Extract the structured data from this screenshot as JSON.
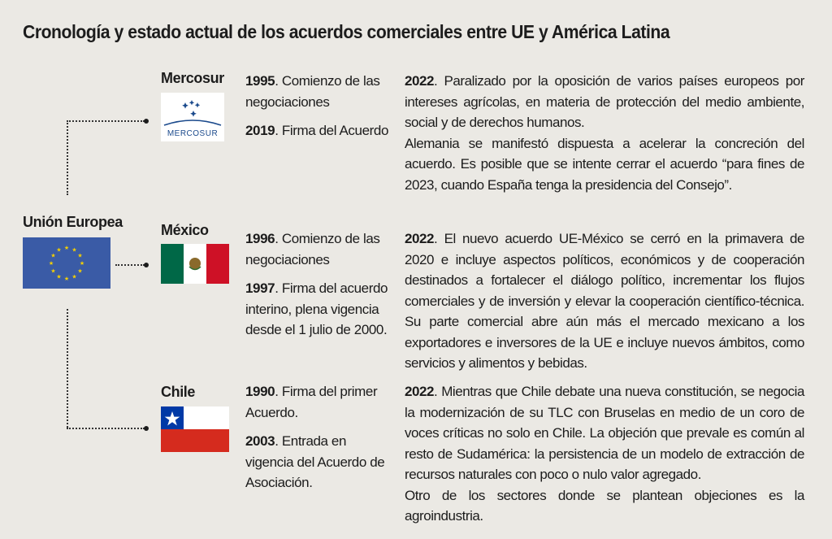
{
  "title": "Cronología y estado actual de los acuerdos comerciales entre UE y América Latina",
  "eu": {
    "label": "Unión Europea",
    "flag": "eu-flag",
    "color": "#3a5ba6",
    "star_color": "#f5d000"
  },
  "rows": [
    {
      "name": "Mercosur",
      "logo_text": "MERCOSUR",
      "logo_color": "#1b4a8c",
      "events": [
        {
          "year": "1995",
          "text": ". Comienzo de las negociaciones"
        },
        {
          "year": "2019",
          "text": ". Firma del Acuerdo"
        }
      ],
      "status_year": "2022",
      "status_text": ". Paralizado por la oposición de varios países europeos por intereses agrícolas, en materia de protección del medio ambiente, social y de derechos humanos.",
      "status_extra": "Alemania se manifestó dispuesta a acelerar la concreción del acuerdo. Es posible que se intente cerrar el acuerdo “para fines de 2023, cuando España tenga la presidencia del Consejo”."
    },
    {
      "name": "México",
      "flag_colors": [
        "#006847",
        "#ffffff",
        "#ce1126"
      ],
      "events": [
        {
          "year": "1996",
          "text": ". Comienzo de las negociaciones"
        },
        {
          "year": "1997",
          "text": ". Firma del acuerdo interino, plena vigencia desde el 1 julio de 2000."
        }
      ],
      "status_year": "2022",
      "status_text": ". El nuevo acuerdo UE-México se cerró en la primavera de 2020 e incluye aspectos políticos, económicos y de cooperación destinados a fortalecer el diálogo político, incrementar los flujos comerciales y de inversión y elevar la cooperación científico-técnica. Su parte comercial abre aún más el mercado mexicano a los exportadores e inversores de la UE e incluye nuevos ámbitos, como servicios y alimentos y bebidas.",
      "status_extra": ""
    },
    {
      "name": "Chile",
      "flag_colors": [
        "#0039a6",
        "#ffffff",
        "#d52b1e"
      ],
      "events": [
        {
          "year": "1990",
          "text": ". Firma del primer Acuerdo."
        },
        {
          "year": "2003",
          "text": ". Entrada en vigencia del Acuerdo de Asociación."
        }
      ],
      "status_year": "2022",
      "status_text": ". Mientras que Chile debate una nueva constitución, se negocia la modernización de su TLC con Bruselas en medio de un coro de voces críticas no solo en Chile. La objeción que prevale es común al resto de Sudamérica: la persistencia de un modelo de extracción de recursos naturales con poco o nulo valor agregado.",
      "status_extra": "Otro de los sectores donde se plantean objeciones es la agroindustria."
    }
  ]
}
